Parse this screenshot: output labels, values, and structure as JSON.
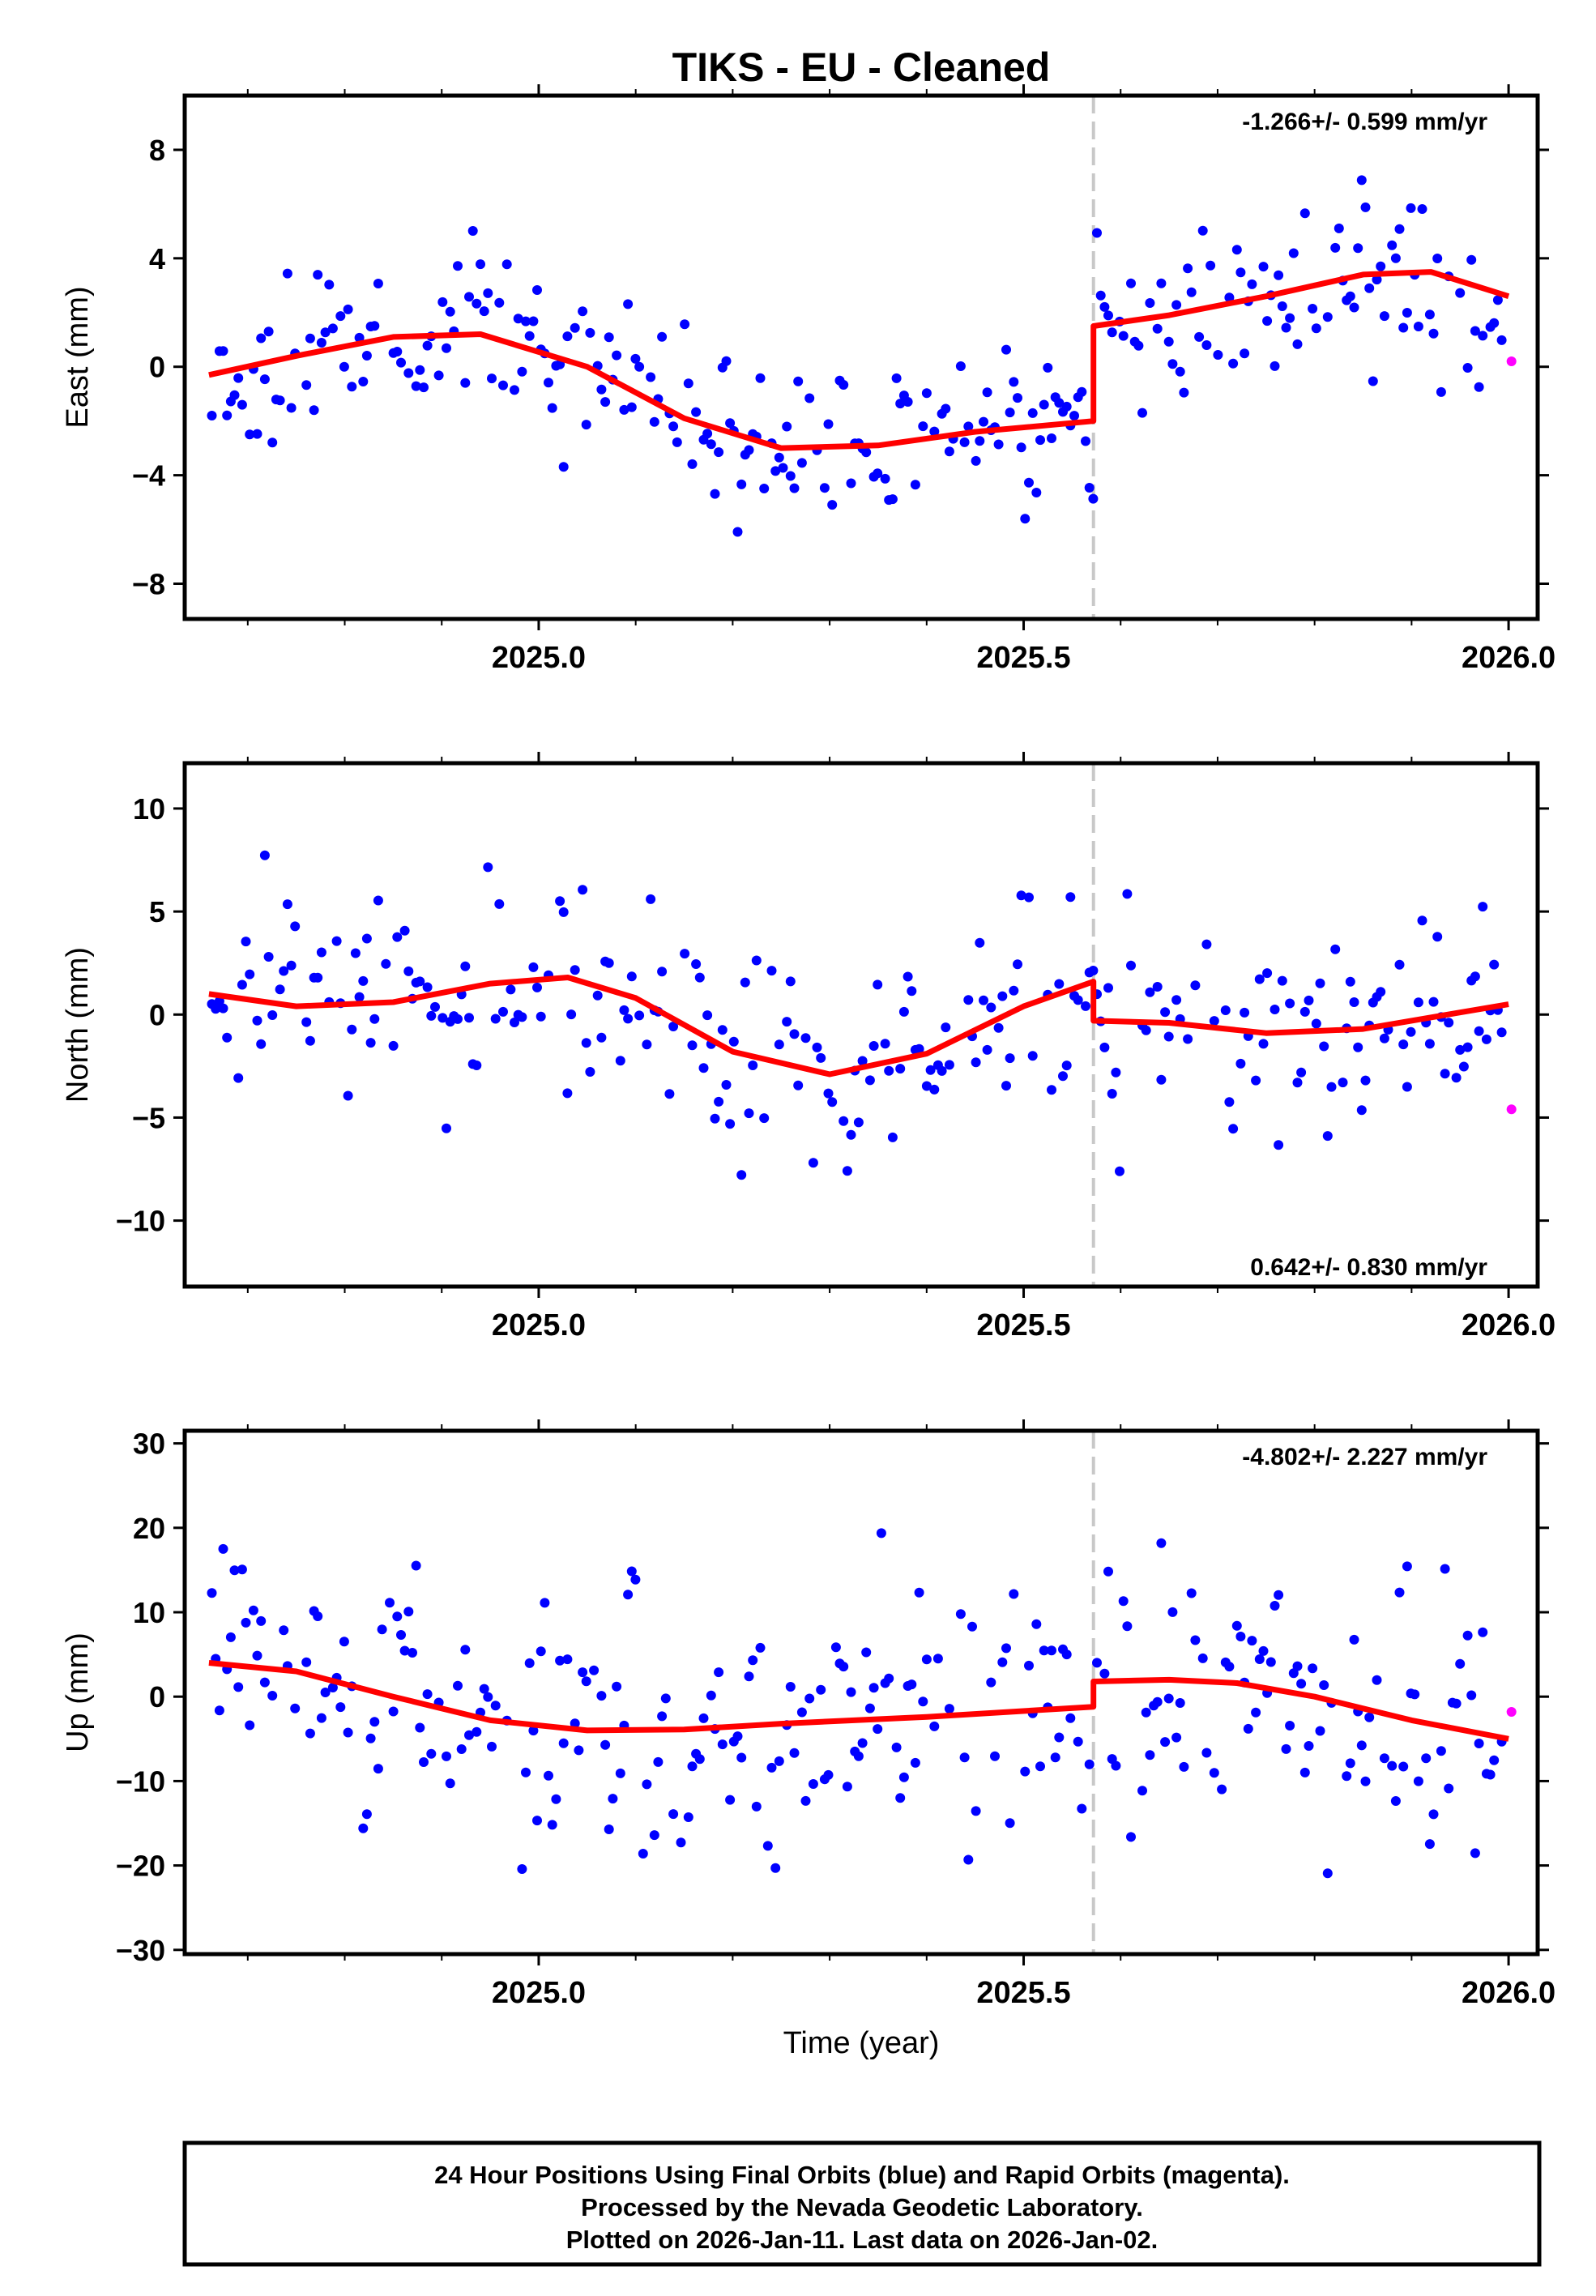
{
  "title": "TIKS  - EU - Cleaned",
  "footer": {
    "line1": "24 Hour Positions Using Final Orbits (blue) and Rapid Orbits (magenta).",
    "line2": "Processed by the Nevada Geodetic Laboratory.",
    "line3": "Plotted on 2026-Jan-11. Last data on 2026-Jan-02."
  },
  "colors": {
    "final": "#0000ff",
    "rapid": "#ff00ff",
    "model": "#ff0000",
    "step": "#c8c8c8"
  },
  "chart_data": [
    {
      "type": "scatter",
      "name": "east",
      "ylabel": "East (mm)",
      "xlabel": "",
      "xlim": [
        2024.635,
        2026.03
      ],
      "ylim": [
        -9.3,
        10.0
      ],
      "xticks": [
        2025.0,
        2025.5,
        2026.0
      ],
      "xtick_labels": [
        "2025.0",
        "2025.5",
        "2026.0"
      ],
      "yticks": [
        8,
        4,
        0,
        -4,
        -8
      ],
      "ytick_labels": [
        "8",
        "4",
        "0",
        "−4",
        "−8"
      ],
      "step_epoch": 2025.572,
      "rate_label": "-1.266+/- 0.599 mm/yr",
      "rate_position": "top-right",
      "model": {
        "x": [
          2024.66,
          2024.75,
          2024.85,
          2024.94,
          2025.05,
          2025.15,
          2025.25,
          2025.35,
          2025.45,
          2025.572,
          2025.572,
          2025.65,
          2025.75,
          2025.85,
          2025.92,
          2026.0
        ],
        "y": [
          -0.3,
          0.4,
          1.1,
          1.2,
          0.0,
          -1.9,
          -3.0,
          -2.9,
          -2.4,
          -2.0,
          1.5,
          1.9,
          2.6,
          3.4,
          3.5,
          2.6
        ]
      },
      "rapid": {
        "x": [
          2026.003
        ],
        "y": [
          0.2
        ]
      }
    },
    {
      "type": "scatter",
      "name": "north",
      "ylabel": "North (mm)",
      "xlabel": "",
      "xlim": [
        2024.635,
        2026.03
      ],
      "ylim": [
        -13.2,
        12.2
      ],
      "xticks": [
        2025.0,
        2025.5,
        2026.0
      ],
      "xtick_labels": [
        "2025.0",
        "2025.5",
        "2026.0"
      ],
      "yticks": [
        10,
        5,
        0,
        -5,
        -10
      ],
      "ytick_labels": [
        "10",
        "5",
        "0",
        "−5",
        "−10"
      ],
      "step_epoch": 2025.572,
      "rate_label": "0.642+/- 0.830 mm/yr",
      "rate_position": "bottom-right",
      "model": {
        "x": [
          2024.66,
          2024.75,
          2024.85,
          2024.95,
          2025.03,
          2025.1,
          2025.2,
          2025.3,
          2025.4,
          2025.5,
          2025.572,
          2025.572,
          2025.65,
          2025.75,
          2025.85,
          2025.95,
          2026.0
        ],
        "y": [
          1.0,
          0.4,
          0.6,
          1.5,
          1.8,
          0.8,
          -1.8,
          -2.9,
          -1.9,
          0.4,
          1.6,
          -0.3,
          -0.4,
          -0.9,
          -0.7,
          0.1,
          0.5
        ]
      },
      "rapid": {
        "x": [
          2026.003
        ],
        "y": [
          -4.6
        ]
      }
    },
    {
      "type": "scatter",
      "name": "up",
      "ylabel": "Up (mm)",
      "xlabel": "Time (year)",
      "xlim": [
        2024.635,
        2026.03
      ],
      "ylim": [
        -30.5,
        31.5
      ],
      "xticks": [
        2025.0,
        2025.5,
        2026.0
      ],
      "xtick_labels": [
        "2025.0",
        "2025.5",
        "2026.0"
      ],
      "yticks": [
        30,
        20,
        10,
        0,
        -10,
        -20,
        -30
      ],
      "ytick_labels": [
        "30",
        "20",
        "10",
        "0",
        "−10",
        "−20",
        "−30"
      ],
      "step_epoch": 2025.572,
      "rate_label": "-4.802+/- 2.227 mm/yr",
      "rate_position": "top-right",
      "model": {
        "x": [
          2024.66,
          2024.75,
          2024.85,
          2024.95,
          2025.05,
          2025.15,
          2025.25,
          2025.4,
          2025.572,
          2025.572,
          2025.65,
          2025.72,
          2025.8,
          2025.9,
          2026.0
        ],
        "y": [
          4.0,
          3.0,
          0.0,
          -2.8,
          -4.0,
          -3.9,
          -3.2,
          -2.4,
          -1.2,
          1.8,
          2.0,
          1.6,
          0.0,
          -2.8,
          -5.0
        ]
      },
      "rapid": {
        "x": [
          2026.003
        ],
        "y": [
          -1.8
        ]
      }
    }
  ]
}
